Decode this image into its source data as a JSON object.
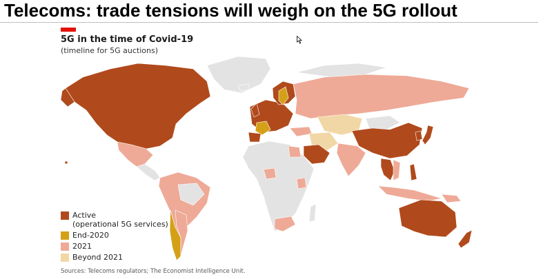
{
  "slide": {
    "title": "Telecoms: trade tensions will weigh on the 5G rollout"
  },
  "chart": {
    "title": "5G in the time of Covid-19",
    "subtitle": "(timeline for 5G auctions)",
    "source": "Sources: Telecoms regulators; The Economist Intelligence Unit."
  },
  "colors": {
    "accent": "#e3120b",
    "active": "#b04a1c",
    "end2020": "#d4a017",
    "y2021": "#eeaa97",
    "beyond2021": "#f2d7a6",
    "no_data": "#e3e3e3"
  },
  "legend": [
    {
      "key": "active",
      "label": "Active",
      "sublabel": "(operational 5G services)"
    },
    {
      "key": "end2020",
      "label": "End-2020",
      "sublabel": ""
    },
    {
      "key": "y2021",
      "label": "2021",
      "sublabel": ""
    },
    {
      "key": "beyond2021",
      "label": "Beyond 2021",
      "sublabel": ""
    }
  ]
}
